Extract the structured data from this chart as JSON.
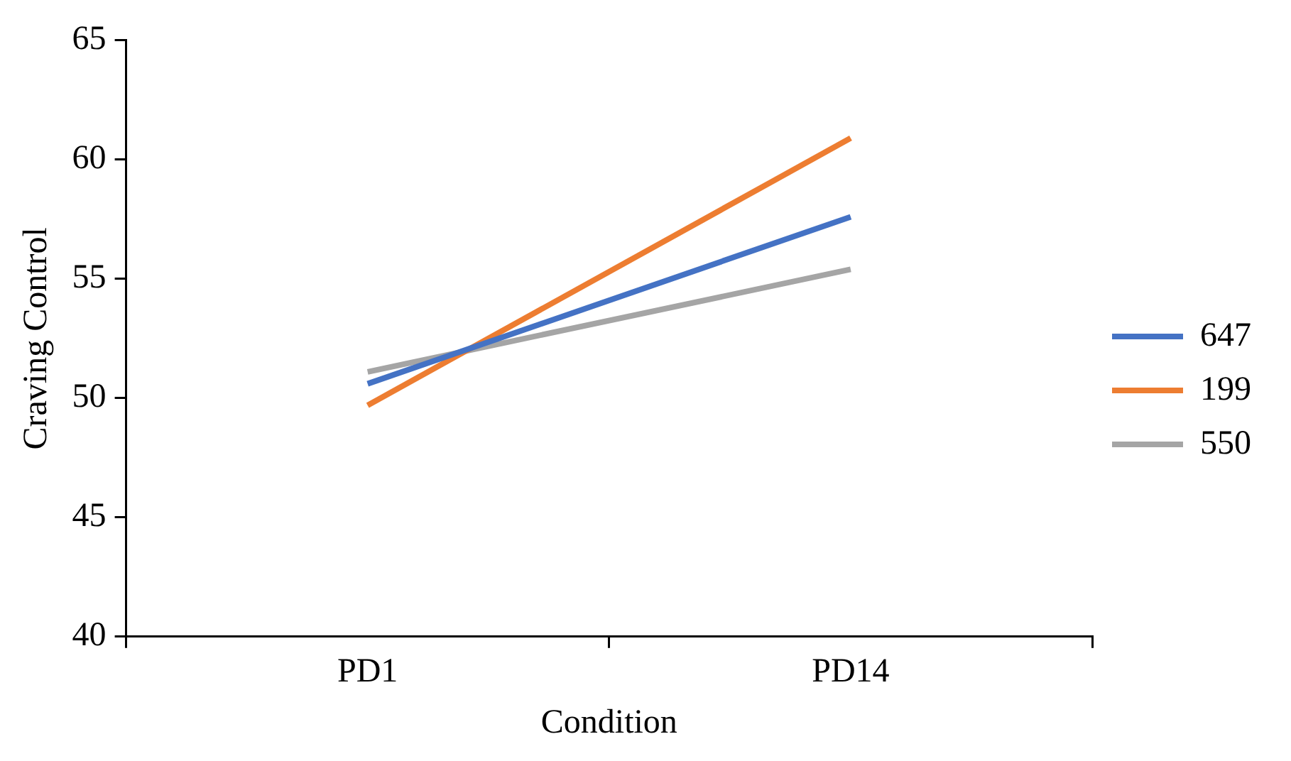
{
  "chart_data": {
    "type": "line",
    "xlabel": "Condition",
    "ylabel": "Craving Control",
    "categories": [
      "PD1",
      "PD14"
    ],
    "series": [
      {
        "name": "647",
        "color": "#4472c4",
        "values": [
          50.6,
          57.6
        ]
      },
      {
        "name": "199",
        "color": "#ed7d31",
        "values": [
          49.7,
          60.9
        ]
      },
      {
        "name": "550",
        "color": "#a5a5a5",
        "values": [
          51.1,
          55.4
        ]
      }
    ],
    "ylim": [
      40,
      65
    ],
    "yticks": [
      40,
      45,
      50,
      55,
      60,
      65
    ],
    "grid": false,
    "legend": "right",
    "marker": "none",
    "line_style": "solid"
  }
}
